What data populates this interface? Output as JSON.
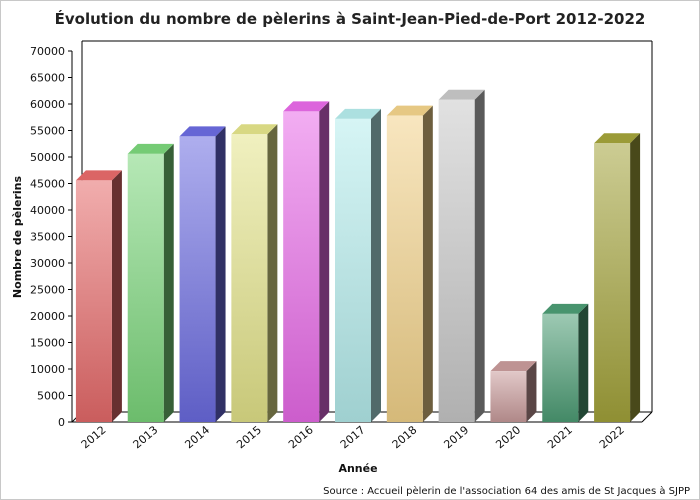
{
  "chart_data": {
    "type": "bar",
    "title": "Évolution du nombre de pèlerins à Saint-Jean-Pied-de-Port 2012-2022",
    "xlabel": "Année",
    "ylabel": "Nombre de pèlerins",
    "source": "Source : Accueil pèlerin de l'association 64 des amis de St Jacques à SJPP",
    "ylim": [
      0,
      70000
    ],
    "ytick_step": 5000,
    "grid": false,
    "categories": [
      "2012",
      "2013",
      "2014",
      "2015",
      "2016",
      "2017",
      "2018",
      "2019",
      "2020",
      "2021",
      "2022"
    ],
    "values": [
      45600,
      50600,
      53900,
      54300,
      58600,
      57200,
      57800,
      60800,
      9600,
      20400,
      52600
    ],
    "colors": [
      "#e66a6a",
      "#7bd67b",
      "#6b6be0",
      "#e3e38a",
      "#e86ae8",
      "#b5ecec",
      "#f2d28a",
      "#c8c8c8",
      "#c89b9b",
      "#4c9c74",
      "#a3a33a"
    ]
  }
}
